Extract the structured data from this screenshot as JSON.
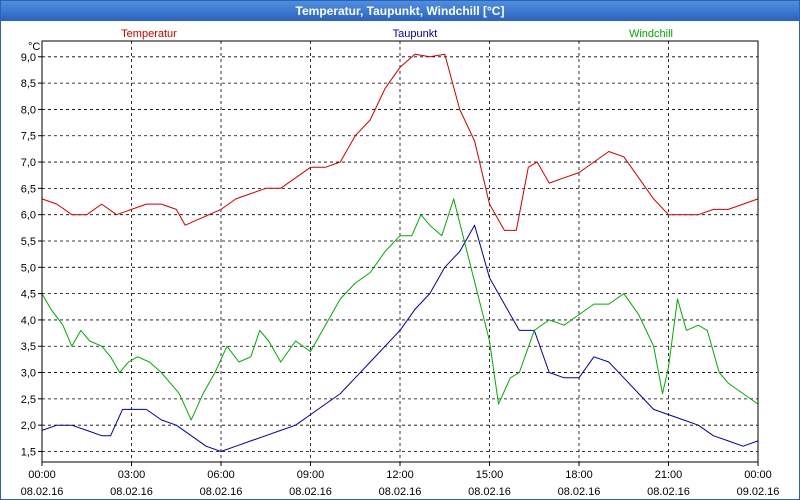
{
  "window": {
    "title": "Temperatur, Taupunkt, Windchill [°C]"
  },
  "chart_data": {
    "type": "line",
    "unit_label": "°C",
    "grid": true,
    "legend_position": "top",
    "ylim": [
      1.3,
      9.3
    ],
    "y_ticks": [
      "1,5",
      "2,0",
      "2,5",
      "3,0",
      "3,5",
      "4,0",
      "4,5",
      "5,0",
      "5,5",
      "6,0",
      "6,5",
      "7,0",
      "7,5",
      "8,0",
      "8,5",
      "9,0"
    ],
    "x_range_hours": [
      0,
      24
    ],
    "x_ticks": [
      {
        "time": "00:00",
        "date": "08.02.16"
      },
      {
        "time": "03:00",
        "date": "08.02.16"
      },
      {
        "time": "06:00",
        "date": "08.02.16"
      },
      {
        "time": "09:00",
        "date": "08.02.16"
      },
      {
        "time": "12:00",
        "date": "08.02.16"
      },
      {
        "time": "15:00",
        "date": "08.02.16"
      },
      {
        "time": "18:00",
        "date": "08.02.16"
      },
      {
        "time": "21:00",
        "date": "08.02.16"
      },
      {
        "time": "00:00",
        "date": "09.02.16"
      }
    ],
    "series": [
      {
        "name": "Temperatur",
        "color": "#cc0000",
        "points": [
          [
            0,
            6.3
          ],
          [
            0.5,
            6.2
          ],
          [
            1,
            6.0
          ],
          [
            1.5,
            6.0
          ],
          [
            2,
            6.2
          ],
          [
            2.5,
            6.0
          ],
          [
            3,
            6.1
          ],
          [
            3.5,
            6.2
          ],
          [
            4,
            6.2
          ],
          [
            4.5,
            6.1
          ],
          [
            4.8,
            5.8
          ],
          [
            5.2,
            5.9
          ],
          [
            6,
            6.1
          ],
          [
            6.5,
            6.3
          ],
          [
            7,
            6.4
          ],
          [
            7.5,
            6.5
          ],
          [
            8,
            6.5
          ],
          [
            8.5,
            6.7
          ],
          [
            9,
            6.9
          ],
          [
            9.5,
            6.9
          ],
          [
            10,
            7.0
          ],
          [
            10.5,
            7.5
          ],
          [
            11,
            7.8
          ],
          [
            11.5,
            8.4
          ],
          [
            12,
            8.8
          ],
          [
            12.5,
            9.05
          ],
          [
            13,
            9.0
          ],
          [
            13.5,
            9.05
          ],
          [
            14,
            8.0
          ],
          [
            14.5,
            7.4
          ],
          [
            15,
            6.2
          ],
          [
            15.5,
            5.7
          ],
          [
            15.9,
            5.7
          ],
          [
            16.3,
            6.9
          ],
          [
            16.6,
            7.0
          ],
          [
            17,
            6.6
          ],
          [
            17.5,
            6.7
          ],
          [
            18,
            6.8
          ],
          [
            18.5,
            7.0
          ],
          [
            19,
            7.2
          ],
          [
            19.5,
            7.1
          ],
          [
            20,
            6.7
          ],
          [
            20.5,
            6.3
          ],
          [
            21,
            6.0
          ],
          [
            21.5,
            6.0
          ],
          [
            22,
            6.0
          ],
          [
            22.5,
            6.1
          ],
          [
            23,
            6.1
          ],
          [
            23.5,
            6.2
          ],
          [
            24,
            6.3
          ]
        ]
      },
      {
        "name": "Taupunkt",
        "color": "#0000aa",
        "points": [
          [
            0,
            1.9
          ],
          [
            0.5,
            2.0
          ],
          [
            1,
            2.0
          ],
          [
            1.5,
            1.9
          ],
          [
            2,
            1.8
          ],
          [
            2.3,
            1.8
          ],
          [
            2.7,
            2.3
          ],
          [
            3,
            2.3
          ],
          [
            3.5,
            2.3
          ],
          [
            4,
            2.1
          ],
          [
            4.5,
            2.0
          ],
          [
            5,
            1.8
          ],
          [
            5.5,
            1.6
          ],
          [
            6,
            1.5
          ],
          [
            6.5,
            1.6
          ],
          [
            7,
            1.7
          ],
          [
            7.5,
            1.8
          ],
          [
            8,
            1.9
          ],
          [
            8.5,
            2.0
          ],
          [
            9,
            2.2
          ],
          [
            9.5,
            2.4
          ],
          [
            10,
            2.6
          ],
          [
            10.5,
            2.9
          ],
          [
            11,
            3.2
          ],
          [
            11.5,
            3.5
          ],
          [
            12,
            3.8
          ],
          [
            12.5,
            4.2
          ],
          [
            13,
            4.5
          ],
          [
            13.5,
            5.0
          ],
          [
            14,
            5.3
          ],
          [
            14.5,
            5.8
          ],
          [
            15,
            4.8
          ],
          [
            15.5,
            4.3
          ],
          [
            16,
            3.8
          ],
          [
            16.5,
            3.8
          ],
          [
            17,
            3.0
          ],
          [
            17.5,
            2.9
          ],
          [
            18,
            2.9
          ],
          [
            18.5,
            3.3
          ],
          [
            19,
            3.2
          ],
          [
            19.5,
            2.9
          ],
          [
            20,
            2.6
          ],
          [
            20.5,
            2.3
          ],
          [
            21,
            2.2
          ],
          [
            21.5,
            2.1
          ],
          [
            22,
            2.0
          ],
          [
            22.5,
            1.8
          ],
          [
            23,
            1.7
          ],
          [
            23.5,
            1.6
          ],
          [
            24,
            1.7
          ]
        ]
      },
      {
        "name": "Windchill",
        "color": "#00aa00",
        "points": [
          [
            0,
            4.5
          ],
          [
            0.3,
            4.2
          ],
          [
            0.7,
            3.9
          ],
          [
            1,
            3.5
          ],
          [
            1.3,
            3.8
          ],
          [
            1.6,
            3.6
          ],
          [
            2,
            3.5
          ],
          [
            2.3,
            3.3
          ],
          [
            2.6,
            3.0
          ],
          [
            2.9,
            3.2
          ],
          [
            3.2,
            3.3
          ],
          [
            3.6,
            3.2
          ],
          [
            4,
            3.0
          ],
          [
            4.3,
            2.8
          ],
          [
            4.6,
            2.6
          ],
          [
            5,
            2.1
          ],
          [
            5.4,
            2.6
          ],
          [
            5.8,
            3.0
          ],
          [
            6.2,
            3.5
          ],
          [
            6.6,
            3.2
          ],
          [
            7,
            3.3
          ],
          [
            7.3,
            3.8
          ],
          [
            7.6,
            3.6
          ],
          [
            8,
            3.2
          ],
          [
            8.5,
            3.6
          ],
          [
            9,
            3.4
          ],
          [
            9.5,
            3.9
          ],
          [
            10,
            4.4
          ],
          [
            10.5,
            4.7
          ],
          [
            11,
            4.9
          ],
          [
            11.5,
            5.3
          ],
          [
            12,
            5.6
          ],
          [
            12.4,
            5.6
          ],
          [
            12.7,
            6.0
          ],
          [
            13,
            5.8
          ],
          [
            13.4,
            5.6
          ],
          [
            13.8,
            6.3
          ],
          [
            14.2,
            5.4
          ],
          [
            14.6,
            4.5
          ],
          [
            15,
            3.6
          ],
          [
            15.3,
            2.4
          ],
          [
            15.7,
            2.9
          ],
          [
            16,
            3.0
          ],
          [
            16.5,
            3.8
          ],
          [
            17,
            4.0
          ],
          [
            17.5,
            3.9
          ],
          [
            18,
            4.1
          ],
          [
            18.5,
            4.3
          ],
          [
            19,
            4.3
          ],
          [
            19.5,
            4.5
          ],
          [
            20,
            4.1
          ],
          [
            20.5,
            3.5
          ],
          [
            20.8,
            2.6
          ],
          [
            21,
            3.1
          ],
          [
            21.3,
            4.4
          ],
          [
            21.6,
            3.8
          ],
          [
            22,
            3.9
          ],
          [
            22.3,
            3.8
          ],
          [
            22.7,
            3.0
          ],
          [
            23,
            2.8
          ],
          [
            23.5,
            2.6
          ],
          [
            24,
            2.4
          ]
        ]
      }
    ]
  }
}
